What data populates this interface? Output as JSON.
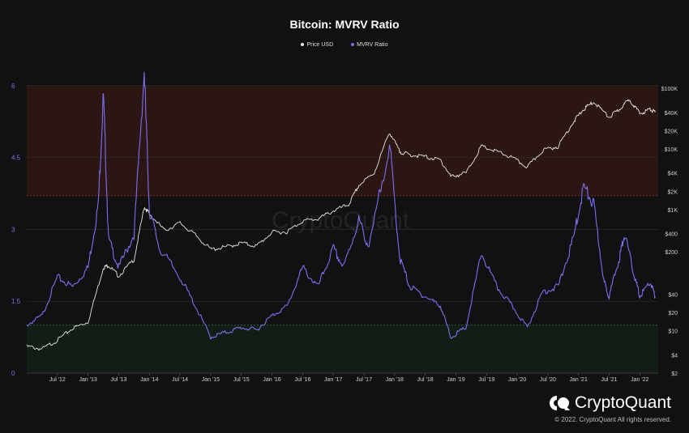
{
  "chart_data": {
    "type": "line",
    "title": "Bitcoin: MVRV Ratio",
    "legend_position": "top-center",
    "series": [
      {
        "name": "Price USD",
        "color": "#e6e6e6",
        "axis": "right",
        "points": [
          [
            "2012-01",
            5.5
          ],
          [
            "2012-04",
            5
          ],
          [
            "2012-07",
            7
          ],
          [
            "2012-10",
            11
          ],
          [
            "2013-01",
            14
          ],
          [
            "2013-04",
            110
          ],
          [
            "2013-05",
            120
          ],
          [
            "2013-07",
            80
          ],
          [
            "2013-10",
            150
          ],
          [
            "2013-12",
            1100
          ],
          [
            "2014-01",
            850
          ],
          [
            "2014-04",
            450
          ],
          [
            "2014-07",
            600
          ],
          [
            "2014-10",
            380
          ],
          [
            "2015-01",
            220
          ],
          [
            "2015-04",
            240
          ],
          [
            "2015-07",
            280
          ],
          [
            "2015-10",
            250
          ],
          [
            "2016-01",
            420
          ],
          [
            "2016-04",
            430
          ],
          [
            "2016-07",
            650
          ],
          [
            "2016-10",
            700
          ],
          [
            "2017-01",
            950
          ],
          [
            "2017-04",
            1200
          ],
          [
            "2017-06",
            2500
          ],
          [
            "2017-09",
            4000
          ],
          [
            "2017-12",
            19000
          ],
          [
            "2018-02",
            9000
          ],
          [
            "2018-04",
            8000
          ],
          [
            "2018-07",
            7400
          ],
          [
            "2018-10",
            6500
          ],
          [
            "2018-12",
            3500
          ],
          [
            "2019-03",
            4000
          ],
          [
            "2019-06",
            11000
          ],
          [
            "2019-09",
            9000
          ],
          [
            "2019-12",
            7200
          ],
          [
            "2020-03",
            5000
          ],
          [
            "2020-06",
            9500
          ],
          [
            "2020-09",
            11000
          ],
          [
            "2020-12",
            28000
          ],
          [
            "2021-02",
            45000
          ],
          [
            "2021-04",
            60000
          ],
          [
            "2021-07",
            33000
          ],
          [
            "2021-09",
            45000
          ],
          [
            "2021-11",
            66000
          ],
          [
            "2022-01",
            38000
          ],
          [
            "2022-03",
            45000
          ],
          [
            "2022-04",
            40000
          ]
        ]
      },
      {
        "name": "MVRV Ratio",
        "color": "#7b6ff0",
        "axis": "left",
        "points": [
          [
            "2012-01",
            1.0
          ],
          [
            "2012-04",
            1.2
          ],
          [
            "2012-07",
            2.0
          ],
          [
            "2012-10",
            1.8
          ],
          [
            "2013-01",
            2.2
          ],
          [
            "2013-03",
            3.5
          ],
          [
            "2013-04",
            5.8
          ],
          [
            "2013-05",
            2.8
          ],
          [
            "2013-07",
            2.2
          ],
          [
            "2013-10",
            2.9
          ],
          [
            "2013-12",
            6.3
          ],
          [
            "2014-01",
            3.4
          ],
          [
            "2014-03",
            2.6
          ],
          [
            "2014-07",
            2.0
          ],
          [
            "2014-10",
            1.4
          ],
          [
            "2015-01",
            0.75
          ],
          [
            "2015-04",
            0.85
          ],
          [
            "2015-07",
            0.95
          ],
          [
            "2015-10",
            0.9
          ],
          [
            "2016-01",
            1.2
          ],
          [
            "2016-04",
            1.4
          ],
          [
            "2016-07",
            2.2
          ],
          [
            "2016-10",
            1.8
          ],
          [
            "2017-01",
            2.6
          ],
          [
            "2017-03",
            2.2
          ],
          [
            "2017-06",
            3.2
          ],
          [
            "2017-08",
            2.6
          ],
          [
            "2017-12",
            4.8
          ],
          [
            "2018-02",
            2.4
          ],
          [
            "2018-04",
            1.8
          ],
          [
            "2018-07",
            1.6
          ],
          [
            "2018-10",
            1.4
          ],
          [
            "2018-12",
            0.75
          ],
          [
            "2019-03",
            0.95
          ],
          [
            "2019-06",
            2.5
          ],
          [
            "2019-09",
            1.8
          ],
          [
            "2019-12",
            1.4
          ],
          [
            "2020-03",
            0.95
          ],
          [
            "2020-06",
            1.7
          ],
          [
            "2020-09",
            1.8
          ],
          [
            "2020-12",
            2.8
          ],
          [
            "2021-02",
            3.9
          ],
          [
            "2021-04",
            3.5
          ],
          [
            "2021-06",
            1.9
          ],
          [
            "2021-07",
            1.6
          ],
          [
            "2021-09",
            2.4
          ],
          [
            "2021-10",
            2.9
          ],
          [
            "2021-12",
            2.0
          ],
          [
            "2022-01",
            1.6
          ],
          [
            "2022-03",
            1.9
          ],
          [
            "2022-04",
            1.6
          ]
        ]
      }
    ],
    "left_axis": {
      "ylim": [
        0,
        6.3
      ],
      "ticks": [
        "0",
        "1.5",
        "3",
        "4.5",
        "6"
      ]
    },
    "right_axis": {
      "scale": "log",
      "ticks": [
        "$2",
        "$4",
        "$10",
        "$20",
        "$40",
        "$200",
        "$400",
        "$1K",
        "$2K",
        "$4K",
        "$10K",
        "$20K",
        "$40K",
        "$100K"
      ]
    },
    "x_axis": {
      "range": [
        "2012-01",
        "2022-05"
      ],
      "ticks": [
        "Jul '12",
        "Jan '13",
        "Jul '13",
        "Jan '14",
        "Jul '14",
        "Jan '15",
        "Jul '15",
        "Jan '16",
        "Jul '16",
        "Jan '17",
        "Jul '17",
        "Jan '18",
        "Jul '18",
        "Jan '19",
        "Jul '19",
        "Jan '20",
        "Jul '20",
        "Jan '21",
        "Jul '21",
        "Jan '22"
      ]
    },
    "bands": [
      {
        "from": 3.7,
        "to": 6,
        "color": "#2c1614"
      },
      {
        "from": 0,
        "to": 1,
        "color": "#111d15"
      }
    ],
    "watermark": "CryptoQuant"
  },
  "brand": {
    "name": "CryptoQuant",
    "copyright": "© 2022. CryptoQuant All rights reserved."
  }
}
